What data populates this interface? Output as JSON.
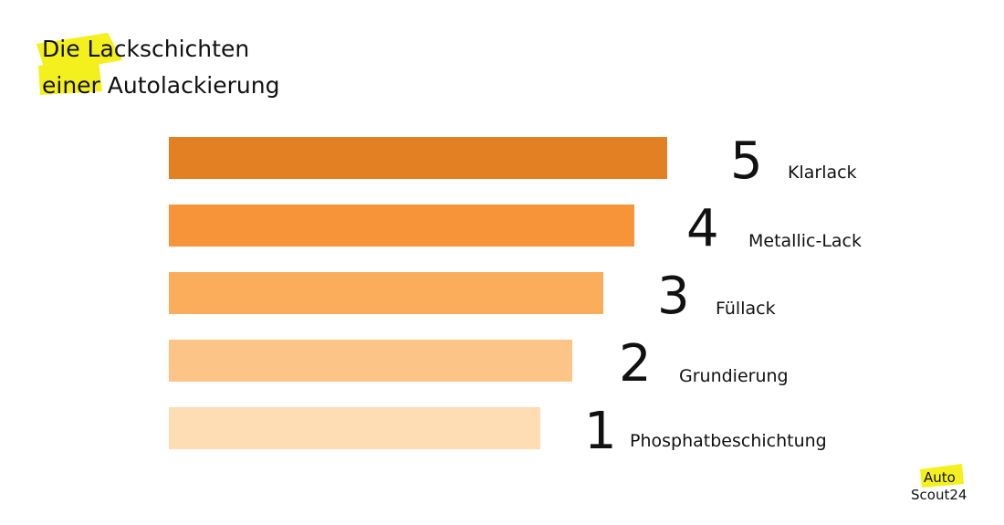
{
  "title": {
    "lines": [
      "Die Lackschichten",
      "einer Autolackierung"
    ]
  },
  "layers": [
    {
      "number": 5,
      "label": "Klarlack"
    },
    {
      "number": 4,
      "label": "Metallic-Lack"
    },
    {
      "number": 3,
      "label": "Füllack"
    },
    {
      "number": 2,
      "label": "Grundierung"
    },
    {
      "number": 1,
      "label": "Phosphatbeschichtung"
    }
  ],
  "logo": {
    "top": "Auto",
    "bottom": "Scout24"
  }
}
